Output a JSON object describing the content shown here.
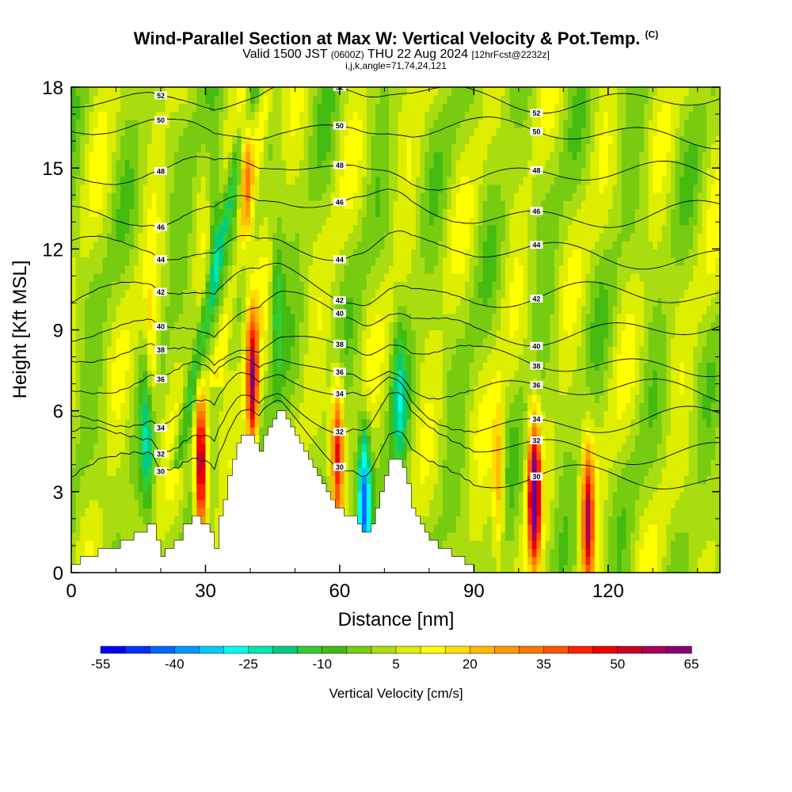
{
  "header": {
    "title": "Wind-Parallel Section at Max W: Vertical Velocity & Pot.Temp.",
    "copyright": "(C)",
    "valid_prefix": "Valid 1500 JST",
    "valid_utc": "(0600Z)",
    "valid_date": "THU 22 Aug 2024",
    "forecast_info": "[12hrFcst@2232z]",
    "grid_info": "i,j,k,angle=71,74,24,121"
  },
  "chart_data": {
    "type": "heatmap",
    "xlabel": "Distance [nm]",
    "ylabel": "Height [Kft MSL]",
    "xlim": [
      0,
      145
    ],
    "ylim": [
      0,
      18
    ],
    "x_ticks": [
      0,
      30,
      60,
      90,
      120
    ],
    "y_ticks": [
      0,
      3,
      6,
      9,
      12,
      15,
      18
    ],
    "x_tick_labels": [
      "0",
      "30",
      "60",
      "90",
      "120"
    ],
    "y_tick_labels": [
      "0",
      "3",
      "6",
      "9",
      "12",
      "15",
      "18"
    ],
    "colorbar": {
      "title": "Vertical Velocity [cm/s]",
      "labels": [
        "-55",
        "-40",
        "-25",
        "-10",
        "5",
        "20",
        "35",
        "50",
        "65"
      ],
      "levels": [
        -55,
        -50,
        -45,
        -40,
        -35,
        -30,
        -25,
        -20,
        -15,
        -10,
        -5,
        0,
        5,
        10,
        15,
        20,
        25,
        30,
        35,
        40,
        45,
        50,
        55,
        60,
        65
      ],
      "colors": [
        "#0000ff",
        "#0033ff",
        "#0066ff",
        "#0099ff",
        "#00ccff",
        "#00ffee",
        "#00e6b0",
        "#00cc80",
        "#33cc33",
        "#44bb11",
        "#77cc11",
        "#aadd11",
        "#ddee00",
        "#ffff00",
        "#ffdd00",
        "#ffbb00",
        "#ff9900",
        "#ff7700",
        "#ff5500",
        "#ff2200",
        "#ee0000",
        "#cc0022",
        "#aa0055",
        "#880077",
        "#660099"
      ]
    },
    "terrain": [
      [
        0,
        0.3
      ],
      [
        2,
        0.3
      ],
      [
        2,
        0.6
      ],
      [
        6,
        0.6
      ],
      [
        6,
        0.9
      ],
      [
        11,
        0.9
      ],
      [
        11,
        1.2
      ],
      [
        14,
        1.2
      ],
      [
        14,
        1.5
      ],
      [
        17,
        1.5
      ],
      [
        17,
        1.8
      ],
      [
        19,
        1.8
      ],
      [
        19,
        1.2
      ],
      [
        20,
        1.2
      ],
      [
        20,
        0.6
      ],
      [
        21,
        0.6
      ],
      [
        21,
        0.9
      ],
      [
        23,
        0.9
      ],
      [
        23,
        1.2
      ],
      [
        25,
        1.2
      ],
      [
        25,
        1.8
      ],
      [
        27,
        1.8
      ],
      [
        27,
        2.1
      ],
      [
        29,
        2.1
      ],
      [
        29,
        1.8
      ],
      [
        31,
        1.8
      ],
      [
        31,
        1.5
      ],
      [
        32,
        1.5
      ],
      [
        32,
        0.9
      ],
      [
        33,
        0.9
      ],
      [
        33,
        2.1
      ],
      [
        34,
        2.1
      ],
      [
        34,
        2.7
      ],
      [
        35,
        2.7
      ],
      [
        35,
        3.6
      ],
      [
        36,
        3.6
      ],
      [
        36,
        4.2
      ],
      [
        37,
        4.2
      ],
      [
        37,
        4.8
      ],
      [
        38,
        4.8
      ],
      [
        38,
        5.1
      ],
      [
        41,
        5.1
      ],
      [
        41,
        4.8
      ],
      [
        42,
        4.8
      ],
      [
        42,
        4.5
      ],
      [
        43,
        4.5
      ],
      [
        43,
        5.1
      ],
      [
        44,
        5.1
      ],
      [
        44,
        5.4
      ],
      [
        45,
        5.4
      ],
      [
        45,
        5.7
      ],
      [
        46,
        5.7
      ],
      [
        46,
        6.0
      ],
      [
        48,
        6.0
      ],
      [
        48,
        5.7
      ],
      [
        49,
        5.7
      ],
      [
        49,
        5.4
      ],
      [
        50,
        5.4
      ],
      [
        50,
        5.1
      ],
      [
        51,
        5.1
      ],
      [
        51,
        4.8
      ],
      [
        52,
        4.8
      ],
      [
        52,
        4.5
      ],
      [
        53,
        4.5
      ],
      [
        53,
        4.2
      ],
      [
        54,
        4.2
      ],
      [
        54,
        3.9
      ],
      [
        55,
        3.9
      ],
      [
        55,
        3.6
      ],
      [
        56,
        3.6
      ],
      [
        56,
        3.3
      ],
      [
        57,
        3.3
      ],
      [
        57,
        3.0
      ],
      [
        58,
        3.0
      ],
      [
        58,
        2.7
      ],
      [
        59,
        2.7
      ],
      [
        59,
        2.4
      ],
      [
        61,
        2.4
      ],
      [
        61,
        2.1
      ],
      [
        64,
        2.1
      ],
      [
        64,
        1.8
      ],
      [
        65,
        1.8
      ],
      [
        65,
        1.5
      ],
      [
        67,
        1.5
      ],
      [
        67,
        1.8
      ],
      [
        68,
        1.8
      ],
      [
        68,
        2.4
      ],
      [
        69,
        2.4
      ],
      [
        69,
        3.0
      ],
      [
        70,
        3.0
      ],
      [
        70,
        3.6
      ],
      [
        71,
        3.6
      ],
      [
        71,
        4.2
      ],
      [
        74,
        4.2
      ],
      [
        74,
        3.9
      ],
      [
        75,
        3.9
      ],
      [
        75,
        3.3
      ],
      [
        76,
        3.3
      ],
      [
        76,
        2.4
      ],
      [
        77,
        2.4
      ],
      [
        77,
        2.1
      ],
      [
        78,
        2.1
      ],
      [
        78,
        1.8
      ],
      [
        79,
        1.8
      ],
      [
        79,
        1.5
      ],
      [
        80,
        1.5
      ],
      [
        80,
        1.2
      ],
      [
        82,
        1.2
      ],
      [
        82,
        0.9
      ],
      [
        85,
        0.9
      ],
      [
        85,
        0.6
      ],
      [
        88,
        0.6
      ],
      [
        88,
        0.3
      ],
      [
        90,
        0.3
      ],
      [
        90,
        0.0
      ],
      [
        145,
        0.0
      ]
    ],
    "updraft_cores": [
      {
        "x": 29,
        "y": 4.0,
        "w": 65
      },
      {
        "x": 40.5,
        "y": 7.0,
        "w": 55
      },
      {
        "x": 59.5,
        "y": 4.5,
        "w": 45
      },
      {
        "x": 103.5,
        "y": 3.0,
        "w": 65
      },
      {
        "x": 115.5,
        "y": 2.0,
        "w": 50
      },
      {
        "x": 95.5,
        "y": 3.5,
        "w": 25
      },
      {
        "x": 18,
        "y": 8.0,
        "w": 20
      },
      {
        "x": 39,
        "y": 15.0,
        "w": 25
      }
    ],
    "downdraft_cores": [
      {
        "x": 65.5,
        "y": 2.7,
        "w": -40
      },
      {
        "x": 17,
        "y": 4.5,
        "w": -15
      },
      {
        "x": 73.5,
        "y": 6.5,
        "w": -15
      },
      {
        "x": 32,
        "y": 13.0,
        "w": -15
      },
      {
        "x": 46,
        "y": 10.0,
        "w": -15
      }
    ],
    "isentropes": [
      {
        "theta": 30,
        "height": 3.4
      },
      {
        "theta": 32,
        "height": 4.6
      },
      {
        "theta": 34,
        "height": 5.6
      },
      {
        "theta": 36,
        "height": 6.7
      },
      {
        "theta": 38,
        "height": 7.8
      },
      {
        "theta": 40,
        "height": 9.0
      },
      {
        "theta": 42,
        "height": 10.2
      },
      {
        "theta": 44,
        "height": 11.8
      },
      {
        "theta": 46,
        "height": 13.3
      },
      {
        "theta": 48,
        "height": 14.7
      },
      {
        "theta": 50,
        "height": 16.3
      },
      {
        "theta": 52,
        "height": 17.6
      }
    ]
  }
}
